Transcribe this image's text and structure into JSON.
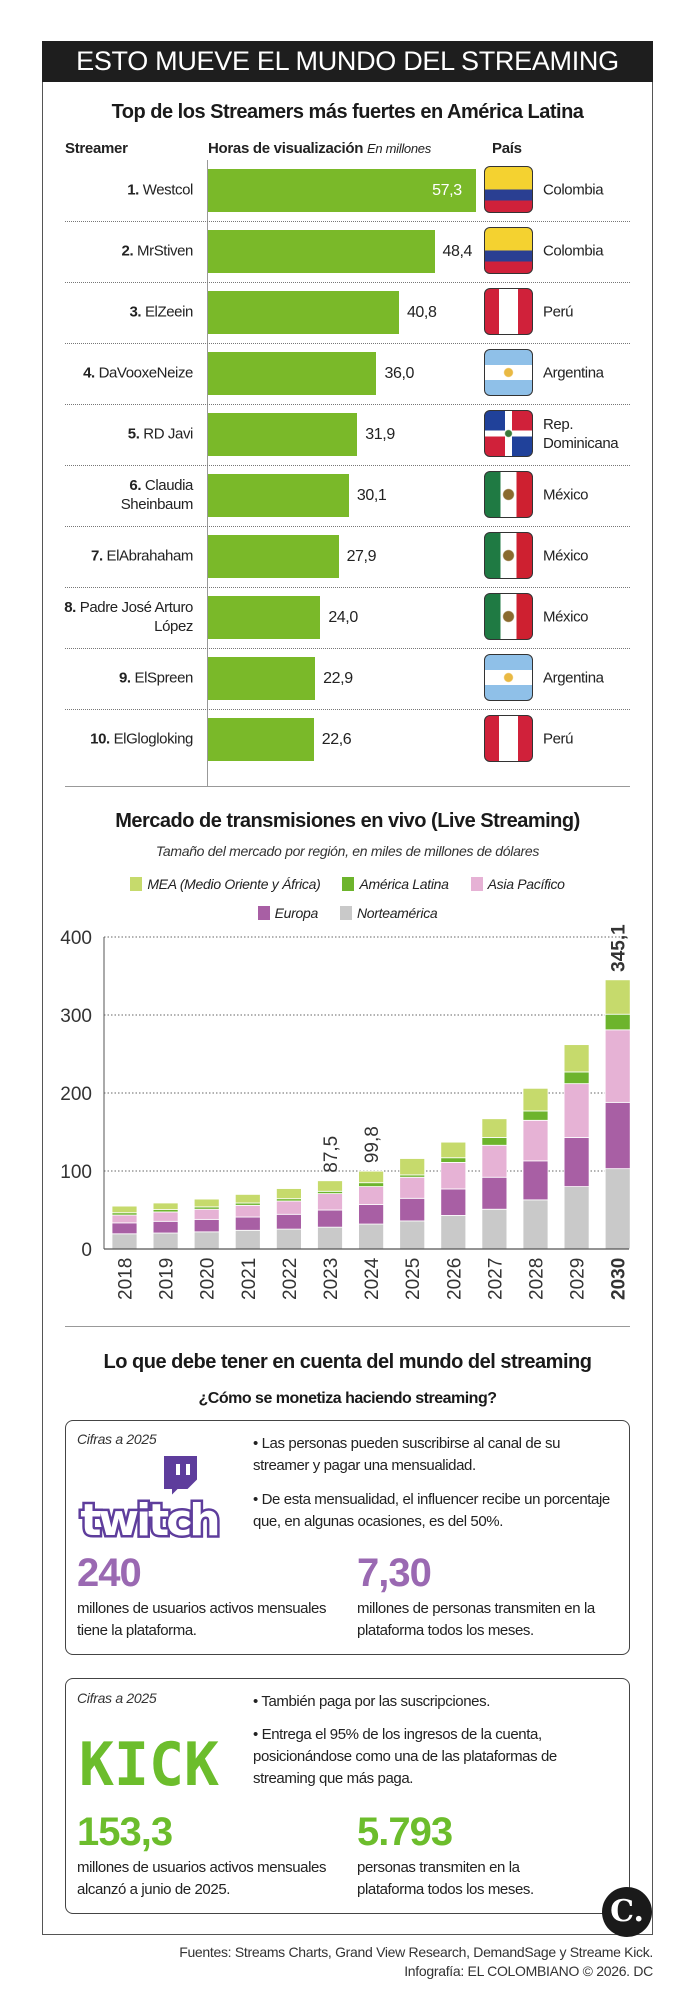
{
  "header": {
    "title": "ESTO MUEVE EL MUNDO DEL STREAMING"
  },
  "streamers": {
    "title": "Top de los Streamers más fuertes en América Latina",
    "col_streamer": "Streamer",
    "col_hours": "Horas de visualización",
    "col_hours_unit": "En millones",
    "col_country": "País",
    "bar_color": "#7ab929",
    "rows": [
      {
        "rank": "1.",
        "name": "Westcol",
        "value": 57.3,
        "label": "57,3",
        "country": "Colombia",
        "flag": "colombia"
      },
      {
        "rank": "2.",
        "name": "MrStiven",
        "value": 48.4,
        "label": "48,4",
        "country": "Colombia",
        "flag": "colombia"
      },
      {
        "rank": "3.",
        "name": "ElZeein",
        "value": 40.8,
        "label": "40,8",
        "country": "Perú",
        "flag": "peru"
      },
      {
        "rank": "4.",
        "name": "DaVooxeNeize",
        "value": 36.0,
        "label": "36,0",
        "country": "Argentina",
        "flag": "argentina"
      },
      {
        "rank": "5.",
        "name": "RD Javi",
        "value": 31.9,
        "label": "31,9",
        "country": "Rep. Dominicana",
        "flag": "dominican-republic"
      },
      {
        "rank": "6.",
        "name": "Claudia Sheinbaum",
        "value": 30.1,
        "label": "30,1",
        "country": "México",
        "flag": "mexico"
      },
      {
        "rank": "7.",
        "name": "ElAbrahaham",
        "value": 27.9,
        "label": "27,9",
        "country": "México",
        "flag": "mexico"
      },
      {
        "rank": "8.",
        "name": "Padre José Arturo López",
        "value": 24.0,
        "label": "24,0",
        "country": "México",
        "flag": "mexico"
      },
      {
        "rank": "9.",
        "name": "ElSpreen",
        "value": 22.9,
        "label": "22,9",
        "country": "Argentina",
        "flag": "argentina"
      },
      {
        "rank": "10.",
        "name": "ElGlogloking",
        "value": 22.6,
        "label": "22,6",
        "country": "Perú",
        "flag": "peru"
      }
    ]
  },
  "chart_data": {
    "type": "bar",
    "stacked": true,
    "title": "Mercado de transmisiones en vivo (Live Streaming)",
    "subtitle": "Tamaño del mercado por región, en miles de millones de dólares",
    "categories": [
      "2018",
      "2019",
      "2020",
      "2021",
      "2022",
      "2023",
      "2024",
      "2025",
      "2026",
      "2027",
      "2028",
      "2029",
      "2030"
    ],
    "ylim": [
      0,
      400
    ],
    "yticks": [
      "0",
      "100",
      "200",
      "300",
      "400"
    ],
    "grid": true,
    "legend_position": "top",
    "series": [
      {
        "name": "Norteamérica",
        "color": "#c9c9c9",
        "values": [
          19.5,
          20.5,
          22,
          24,
          25.5,
          28,
          32,
          36,
          43,
          51,
          63,
          80,
          103
        ]
      },
      {
        "name": "Europa",
        "color": "#a85fa4",
        "values": [
          14,
          15,
          16,
          17,
          19,
          22,
          25,
          29,
          34,
          41,
          50,
          63,
          85
        ]
      },
      {
        "name": "Asia Pacífico",
        "color": "#e6b2d5",
        "values": [
          10,
          12,
          13,
          15,
          17,
          21,
          23,
          27,
          34,
          41,
          52,
          69,
          93
        ]
      },
      {
        "name": "América Latina",
        "color": "#6db42c",
        "values": [
          3,
          3,
          3,
          3,
          3,
          3,
          5,
          3,
          6,
          10,
          12,
          15,
          20
        ]
      },
      {
        "name": "MEA (Medio Oriente y África)",
        "color": "#c6da6c",
        "values": [
          8.5,
          8.5,
          10,
          11,
          13,
          13.5,
          14.8,
          21,
          20,
          24,
          29,
          35,
          44.1
        ]
      }
    ],
    "legend_order": [
      "MEA (Medio Oriente y África)",
      "América Latina",
      "Asia Pacífico",
      "Europa",
      "Norteamérica"
    ],
    "data_labels": [
      {
        "category": "2023",
        "text": "87,5"
      },
      {
        "category": "2024",
        "text": "99,8"
      },
      {
        "category": "2030",
        "text": "345,1",
        "bold": true
      }
    ]
  },
  "tips": {
    "title": "Lo que debe tener en cuenta del mundo del streaming",
    "subtitle": "¿Cómo se monetiza haciendo streaming?",
    "twitch": {
      "note": "Cifras a 2025",
      "logo": "twitch",
      "color": "#5e3d9c",
      "number_color": "#9a69b2",
      "bullets": [
        "• Las personas pueden suscribirse al canal de su streamer y pagar una mensualidad.",
        "• De esta mensualidad, el influencer recibe un porcentaje que, en algunas ocasiones, es del 50%."
      ],
      "stat1": {
        "value": "240",
        "text": "millones de usuarios activos mensuales tiene la plataforma."
      },
      "stat2": {
        "value": "7,30",
        "text": "millones de personas transmiten en la plataforma todos los meses."
      }
    },
    "kick": {
      "note": "Cifras a 2025",
      "logo": "KICK",
      "color": "#6cbd2c",
      "bullets": [
        "• También paga por las suscripciones.",
        "• Entrega el 95% de los ingresos de la cuenta, posicionándose como una de las plataformas de streaming que más paga."
      ],
      "stat1": {
        "value": "153,3",
        "text": "millones de usuarios activos mensuales alcanzó a junio de 2025."
      },
      "stat2": {
        "value": "5.793",
        "text": "personas transmiten en la plataforma todos los meses."
      }
    }
  },
  "footer": {
    "sources": "Fuentes: Streams Charts, Grand View Research, DemandSage y Streame Kick.",
    "credit": "Infografía: EL COLOMBIANO © 2026. DC",
    "logo": "C."
  }
}
